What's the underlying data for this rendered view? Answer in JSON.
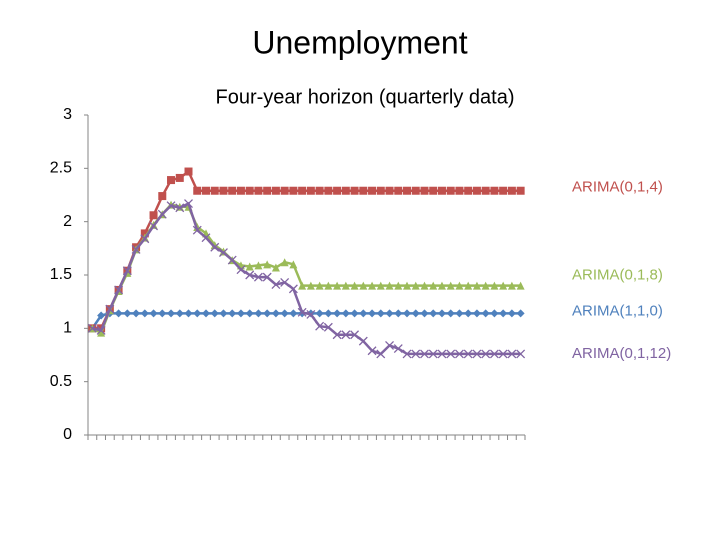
{
  "chart_data": {
    "type": "line",
    "title": "Unemployment",
    "subtitle": "Four-year horizon (quarterly data)",
    "categories": [
      null,
      null,
      null,
      null,
      null,
      null,
      null,
      null,
      null,
      null,
      null,
      null,
      null,
      null,
      null,
      null,
      null,
      null,
      null,
      null,
      null,
      null,
      null,
      null,
      null,
      null,
      null,
      null,
      null,
      null,
      null,
      null,
      null,
      null,
      null,
      null,
      null,
      null,
      null,
      null,
      null,
      null,
      null,
      null,
      null,
      null,
      null,
      null,
      null,
      null
    ],
    "ylim": [
      0,
      3
    ],
    "yticks": [
      0,
      0.5,
      1,
      1.5,
      2,
      2.5,
      3
    ],
    "grid": false,
    "series": [
      {
        "name": "ARIMA(1,1,0)",
        "color": "#4f81bd",
        "marker": "diamond",
        "values": [
          1.0,
          1.12,
          1.14,
          1.14,
          1.14,
          1.14,
          1.14,
          1.14,
          1.14,
          1.14,
          1.14,
          1.14,
          1.14,
          1.14,
          1.14,
          1.14,
          1.14,
          1.14,
          1.14,
          1.14,
          1.14,
          1.14,
          1.14,
          1.14,
          1.14,
          1.14,
          1.14,
          1.14,
          1.14,
          1.14,
          1.14,
          1.14,
          1.14,
          1.14,
          1.14,
          1.14,
          1.14,
          1.14,
          1.14,
          1.14,
          1.14,
          1.14,
          1.14,
          1.14,
          1.14,
          1.14,
          1.14,
          1.14,
          1.14,
          1.14
        ]
      },
      {
        "name": "ARIMA(0,1,4)",
        "color": "#c0504d",
        "marker": "square",
        "values": [
          1.0,
          1.0,
          1.18,
          1.36,
          1.54,
          1.76,
          1.89,
          2.06,
          2.24,
          2.39,
          2.41,
          2.47,
          2.29,
          2.29,
          2.29,
          2.29,
          2.29,
          2.29,
          2.29,
          2.29,
          2.29,
          2.29,
          2.29,
          2.29,
          2.29,
          2.29,
          2.29,
          2.29,
          2.29,
          2.29,
          2.29,
          2.29,
          2.29,
          2.29,
          2.29,
          2.29,
          2.29,
          2.29,
          2.29,
          2.29,
          2.29,
          2.29,
          2.29,
          2.29,
          2.29,
          2.29,
          2.29,
          2.29,
          2.29,
          2.29
        ]
      },
      {
        "name": "ARIMA(0,1,8)",
        "color": "#9bbb59",
        "marker": "triangle",
        "values": [
          1.0,
          0.96,
          1.17,
          1.35,
          1.52,
          1.74,
          1.85,
          1.97,
          2.07,
          2.16,
          2.14,
          2.14,
          1.95,
          1.89,
          1.78,
          1.72,
          1.64,
          1.59,
          1.58,
          1.59,
          1.6,
          1.57,
          1.62,
          1.6,
          1.4,
          1.4,
          1.4,
          1.4,
          1.4,
          1.4,
          1.4,
          1.4,
          1.4,
          1.4,
          1.4,
          1.4,
          1.4,
          1.4,
          1.4,
          1.4,
          1.4,
          1.4,
          1.4,
          1.4,
          1.4,
          1.4,
          1.4,
          1.4,
          1.4,
          1.4
        ]
      },
      {
        "name": "ARIMA(0,1,12)",
        "color": "#8064a2",
        "marker": "x",
        "values": [
          1.0,
          0.98,
          1.18,
          1.36,
          1.54,
          1.74,
          1.84,
          1.96,
          2.07,
          2.15,
          2.13,
          2.17,
          1.92,
          1.85,
          1.76,
          1.71,
          1.64,
          1.55,
          1.5,
          1.48,
          1.48,
          1.41,
          1.43,
          1.37,
          1.15,
          1.13,
          1.02,
          1.01,
          0.94,
          0.94,
          0.94,
          0.88,
          0.79,
          0.76,
          0.84,
          0.81,
          0.76,
          0.76,
          0.76,
          0.76,
          0.76,
          0.76,
          0.76,
          0.76,
          0.76,
          0.76,
          0.76,
          0.76,
          0.76,
          0.76
        ]
      }
    ]
  }
}
